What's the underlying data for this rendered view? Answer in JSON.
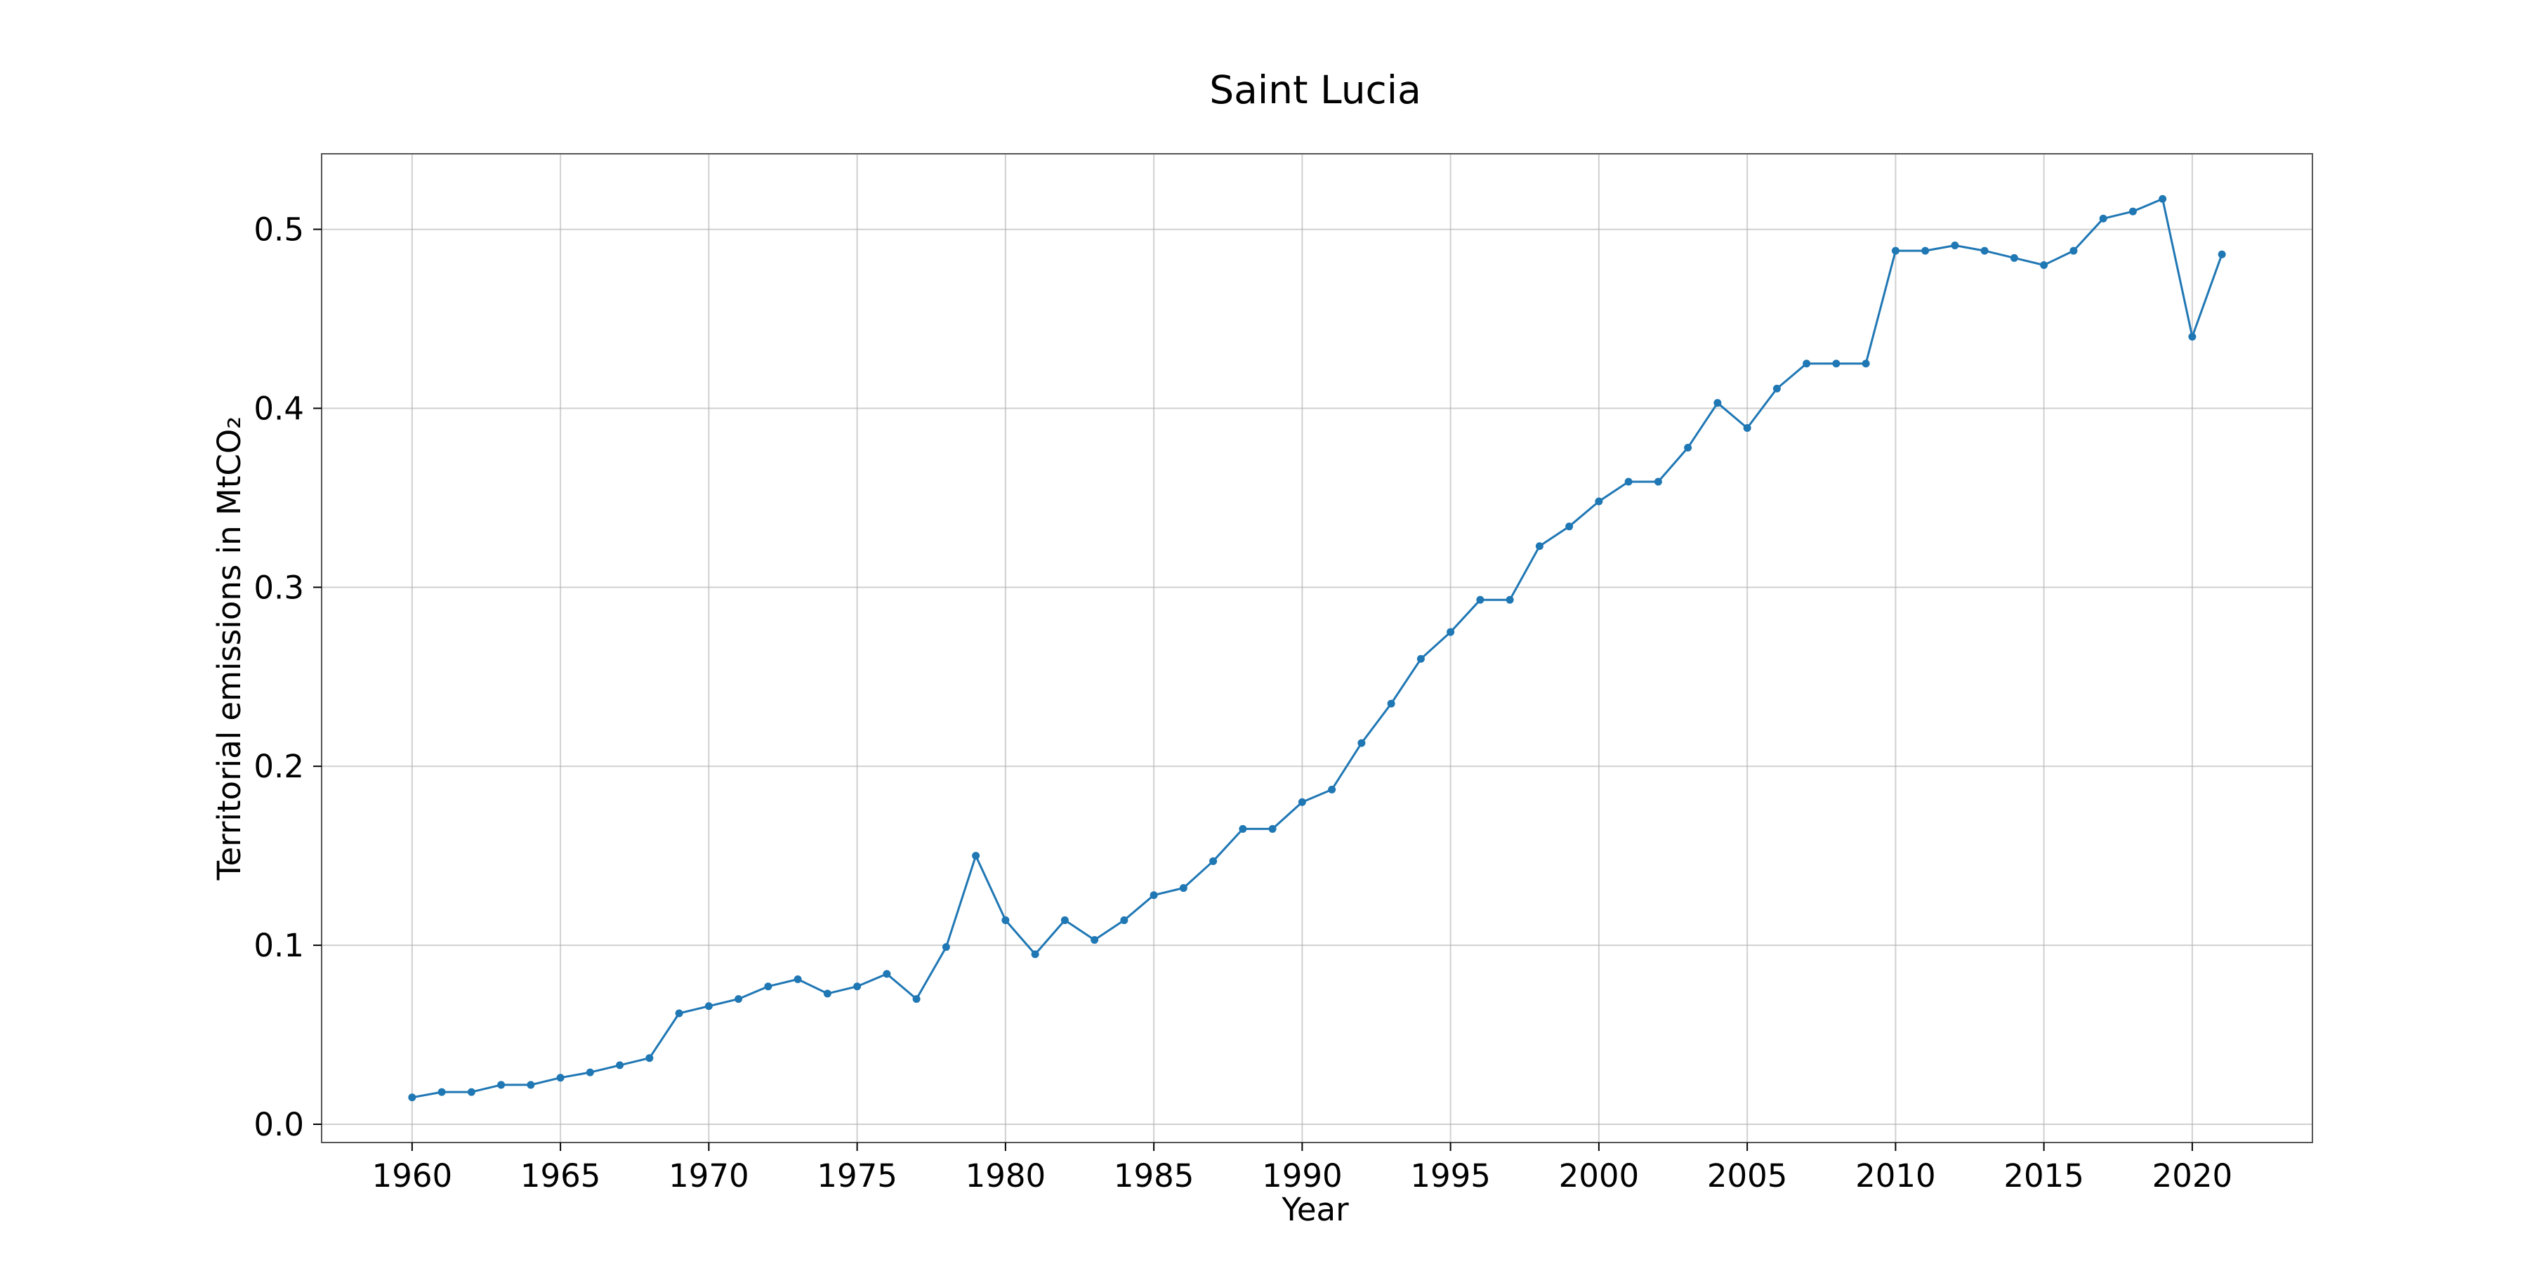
{
  "chart_data": {
    "type": "line",
    "title": "Saint Lucia",
    "xlabel": "Year",
    "ylabel": "Territorial emissions in MtCO₂",
    "xlim": [
      1956.95,
      2024.05
    ],
    "ylim": [
      -0.0102,
      0.5422
    ],
    "x_ticks": [
      1960,
      1965,
      1970,
      1975,
      1980,
      1985,
      1990,
      1995,
      2000,
      2005,
      2010,
      2015,
      2020
    ],
    "y_ticks": [
      0.0,
      0.1,
      0.2,
      0.3,
      0.4,
      0.5
    ],
    "x_tick_labels": [
      "1960",
      "1965",
      "1970",
      "1975",
      "1980",
      "1985",
      "1990",
      "1995",
      "2000",
      "2005",
      "2010",
      "2015",
      "2020"
    ],
    "y_tick_labels": [
      "0.0",
      "0.1",
      "0.2",
      "0.3",
      "0.4",
      "0.5"
    ],
    "grid": true,
    "series_color": "#1f77b4",
    "series": [
      {
        "x": [
          1960,
          1961,
          1962,
          1963,
          1964,
          1965,
          1966,
          1967,
          1968,
          1969,
          1970,
          1971,
          1972,
          1973,
          1974,
          1975,
          1976,
          1977,
          1978,
          1979,
          1980,
          1981,
          1982,
          1983,
          1984,
          1985,
          1986,
          1987,
          1988,
          1989,
          1990,
          1991,
          1992,
          1993,
          1994,
          1995,
          1996,
          1997,
          1998,
          1999,
          2000,
          2001,
          2002,
          2003,
          2004,
          2005,
          2006,
          2007,
          2008,
          2009,
          2010,
          2011,
          2012,
          2013,
          2014,
          2015,
          2016,
          2017,
          2018,
          2019,
          2020,
          2021
        ],
        "values": [
          0.015,
          0.018,
          0.018,
          0.022,
          0.022,
          0.026,
          0.029,
          0.033,
          0.037,
          0.062,
          0.066,
          0.07,
          0.077,
          0.081,
          0.073,
          0.077,
          0.084,
          0.07,
          0.099,
          0.15,
          0.114,
          0.095,
          0.114,
          0.103,
          0.114,
          0.128,
          0.132,
          0.147,
          0.165,
          0.165,
          0.18,
          0.187,
          0.213,
          0.235,
          0.26,
          0.275,
          0.293,
          0.293,
          0.323,
          0.334,
          0.348,
          0.359,
          0.359,
          0.378,
          0.403,
          0.389,
          0.411,
          0.425,
          0.425,
          0.425,
          0.488,
          0.488,
          0.491,
          0.488,
          0.484,
          0.48,
          0.488,
          0.506,
          0.51,
          0.517,
          0.44,
          0.486
        ]
      }
    ]
  }
}
